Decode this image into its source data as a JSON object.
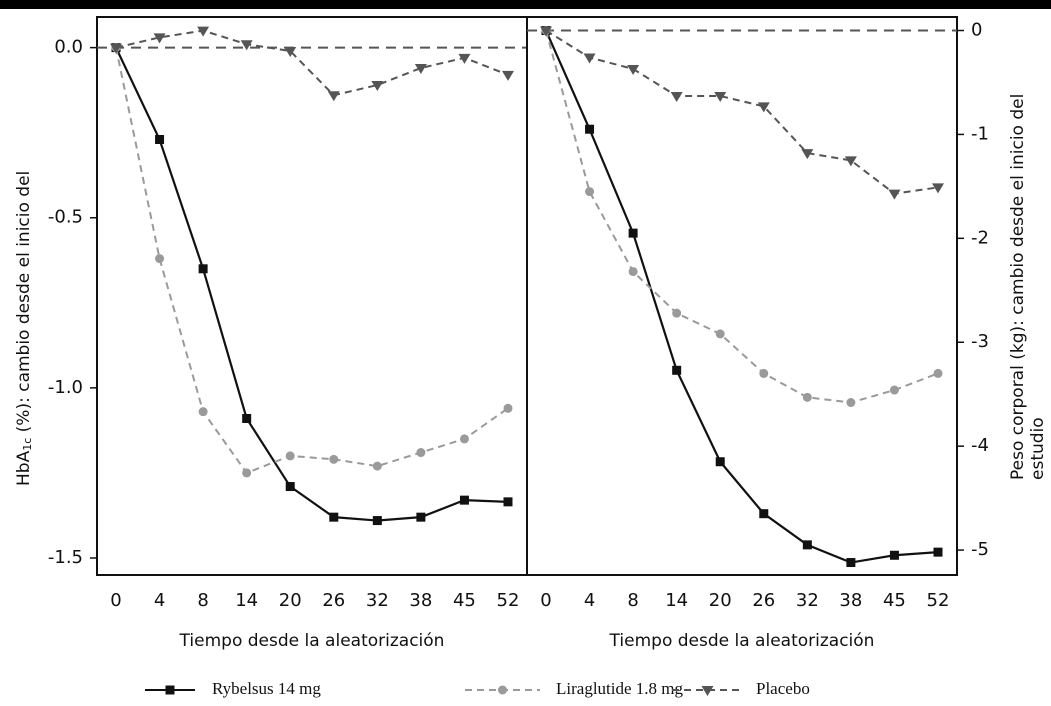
{
  "chart_data": [
    {
      "type": "line",
      "x_label": "Tiempo desde la aleatorización",
      "y_label": [
        [
          {
            "text": "HbA"
          },
          {
            "text": "1c",
            "subscript": true
          },
          {
            "text": " (%): cambio desde el inicio del"
          }
        ]
      ],
      "y_axis_side": "left",
      "categories": [
        "0",
        "4",
        "8",
        "14",
        "20",
        "26",
        "32",
        "38",
        "45",
        "52"
      ],
      "ylim": [
        -1.55,
        0.09
      ],
      "yticks": [
        {
          "value": 0,
          "label": "0.0"
        },
        -0.5,
        {
          "value": -1,
          "label": "-1.0"
        },
        -1.5
      ],
      "series": [
        {
          "name": "Rybelsus 14 mg",
          "color": "#111111",
          "dash": false,
          "marker": "square",
          "values": [
            0,
            -0.27,
            -0.65,
            -1.09,
            -1.29,
            -1.38,
            -1.39,
            -1.38,
            -1.33,
            -1.335
          ]
        },
        {
          "name": "Liraglutide 1.8 mg",
          "color": "#9a9a9a",
          "dash": true,
          "marker": "circle",
          "values": [
            0,
            -0.62,
            -1.07,
            -1.25,
            -1.2,
            -1.21,
            -1.23,
            -1.19,
            -1.15,
            -1.06
          ]
        },
        {
          "name": "Placebo",
          "color": "#555555",
          "dash": true,
          "marker": "triangle",
          "values": [
            0,
            0.03,
            0.05,
            0.01,
            -0.01,
            -0.14,
            -0.11,
            -0.06,
            -0.03,
            -0.08
          ]
        }
      ]
    },
    {
      "type": "line",
      "x_label": "Tiempo desde la aleatorización",
      "y_label": [
        [
          {
            "text": "Peso corporal (kg): cambio desde el inicio del"
          }
        ],
        [
          {
            "text": "estudio"
          }
        ]
      ],
      "y_axis_side": "right",
      "categories": [
        "0",
        "4",
        "8",
        "14",
        "20",
        "26",
        "32",
        "38",
        "45",
        "52"
      ],
      "ylim": [
        -5.24,
        0.13
      ],
      "yticks": [
        0,
        -1,
        -2,
        -3,
        -4,
        -5
      ],
      "series": [
        {
          "color": "#111111",
          "dash": false,
          "marker": "square",
          "values": [
            0,
            -0.95,
            -1.95,
            -3.27,
            -4.15,
            -4.65,
            -4.95,
            -5.12,
            -5.05,
            -5.02
          ]
        },
        {
          "color": "#9a9a9a",
          "dash": true,
          "marker": "circle",
          "values": [
            0,
            -1.55,
            -2.32,
            -2.72,
            -2.92,
            -3.3,
            -3.53,
            -3.58,
            -3.46,
            -3.3
          ]
        },
        {
          "color": "#555555",
          "dash": true,
          "marker": "triangle",
          "values": [
            0,
            -0.26,
            -0.37,
            -0.63,
            -0.63,
            -0.73,
            -1.18,
            -1.25,
            -1.57,
            -1.51
          ]
        }
      ]
    }
  ]
}
